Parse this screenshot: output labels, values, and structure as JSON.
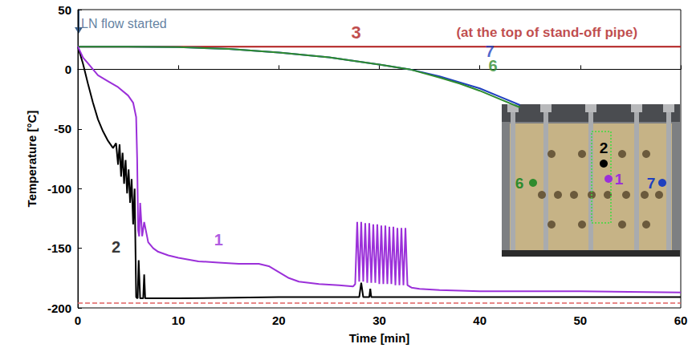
{
  "chart_data": {
    "type": "line",
    "x_label": "Time [min]",
    "y_label": "Temperature [°C]",
    "xlim": [
      0,
      60
    ],
    "xticks": [
      0,
      10,
      20,
      30,
      40,
      50,
      60
    ],
    "ylim": [
      -200,
      50
    ],
    "yticks": [
      -200,
      -150,
      -100,
      -50,
      0,
      50
    ],
    "grid": false,
    "series": [
      {
        "name": "3",
        "color": "#b01c1c",
        "label_pos": [
          28.5,
          31
        ],
        "x": [
          0,
          30,
          60
        ],
        "values": [
          19,
          19,
          19
        ]
      },
      {
        "name": "7",
        "color": "#1f3fbf",
        "label_pos": [
          41,
          15
        ],
        "x": [
          0,
          5,
          10,
          15,
          20,
          25,
          30,
          33,
          36,
          38,
          40,
          42,
          44
        ],
        "values": [
          19,
          19,
          18.5,
          17,
          14,
          10,
          4,
          0,
          -6,
          -11,
          -16,
          -23,
          -30
        ]
      },
      {
        "name": "6",
        "color": "#2e8b2e",
        "label_pos": [
          41.3,
          3
        ],
        "x": [
          0,
          5,
          10,
          15,
          20,
          25,
          30,
          33,
          36,
          38,
          40,
          42,
          44
        ],
        "values": [
          19,
          19,
          18.5,
          17,
          14,
          10,
          4,
          0,
          -7,
          -12,
          -18,
          -25,
          -32
        ]
      },
      {
        "name": "2",
        "color": "#000000",
        "label_pos": [
          3.8,
          -149
        ],
        "x": [
          0,
          0.5,
          1,
          1.5,
          2,
          2.5,
          3,
          3.5,
          3.8,
          4.0,
          4.15,
          4.3,
          4.45,
          4.6,
          4.75,
          4.9,
          5.05,
          5.2,
          5.35,
          5.5,
          5.65,
          5.8,
          5.95,
          6.05,
          6.2,
          6.5,
          6.6,
          6.7,
          7,
          10,
          20,
          28,
          28.2,
          28.4,
          29,
          29.1,
          29.2,
          30,
          40,
          50,
          60
        ],
        "values": [
          19,
          5,
          -12,
          -28,
          -42,
          -52,
          -60,
          -66,
          -62,
          -80,
          -63,
          -90,
          -70,
          -96,
          -76,
          -104,
          -84,
          -112,
          -92,
          -130,
          -100,
          -191,
          -192,
          -160,
          -192,
          -192,
          -172,
          -192,
          -192,
          -192,
          -191,
          -191,
          -179,
          -191,
          -191,
          -184,
          -191,
          -191,
          -191,
          -191,
          -191
        ]
      },
      {
        "name": "1",
        "color": "#9b30d9",
        "label_pos": [
          14,
          -143
        ],
        "x": [
          0,
          0.5,
          1,
          1.5,
          2,
          3,
          4,
          5,
          5.5,
          5.8,
          5.9,
          6.0,
          6.1,
          6.2,
          6.4,
          6.6,
          7,
          7.5,
          8,
          9,
          10,
          12,
          14,
          16,
          18,
          19,
          20,
          21,
          22,
          24,
          26,
          27.4,
          27.6,
          27.8,
          28.0,
          28.2,
          28.4,
          28.6,
          28.8,
          29.0,
          29.2,
          29.4,
          29.6,
          29.8,
          30.0,
          30.2,
          30.4,
          30.6,
          30.8,
          31.0,
          31.2,
          31.4,
          31.6,
          31.8,
          32.0,
          32.2,
          32.4,
          32.6,
          32.8,
          33.2,
          34,
          36,
          40,
          50,
          60
        ],
        "values": [
          19,
          10,
          5,
          0,
          -5,
          -10,
          -15,
          -22,
          -28,
          -40,
          -75,
          -135,
          -140,
          -112,
          -140,
          -128,
          -145,
          -150,
          -153,
          -156,
          -158,
          -161,
          -162,
          -163,
          -163,
          -165,
          -170,
          -175,
          -178,
          -180,
          -181,
          -182,
          -180,
          -128,
          -178,
          -128,
          -178,
          -129,
          -179,
          -129,
          -179,
          -130,
          -179,
          -130,
          -180,
          -131,
          -180,
          -131,
          -180,
          -132,
          -180,
          -132,
          -181,
          -133,
          -181,
          -133,
          -181,
          -133,
          -181,
          -183,
          -184,
          -185,
          -186,
          -186,
          -187
        ]
      }
    ],
    "reference_lines": [
      {
        "value": -196,
        "color": "#e06060",
        "line_style": "dashed"
      }
    ],
    "annotations": [
      {
        "text": "LN flow started",
        "x": 0,
        "y": 38,
        "color": "#3a5f8a",
        "arrow": true
      },
      {
        "text": "(at the top of stand-off pipe)",
        "x": 37.5,
        "y": 31,
        "color": "#b01c1c"
      }
    ],
    "inset": {
      "markers": [
        {
          "text": "2",
          "color": "#000000"
        },
        {
          "text": "6",
          "color": "#2e8b2e"
        },
        {
          "text": "1",
          "color": "#9b30d9"
        },
        {
          "text": "7",
          "color": "#1f3fbf"
        }
      ]
    }
  }
}
